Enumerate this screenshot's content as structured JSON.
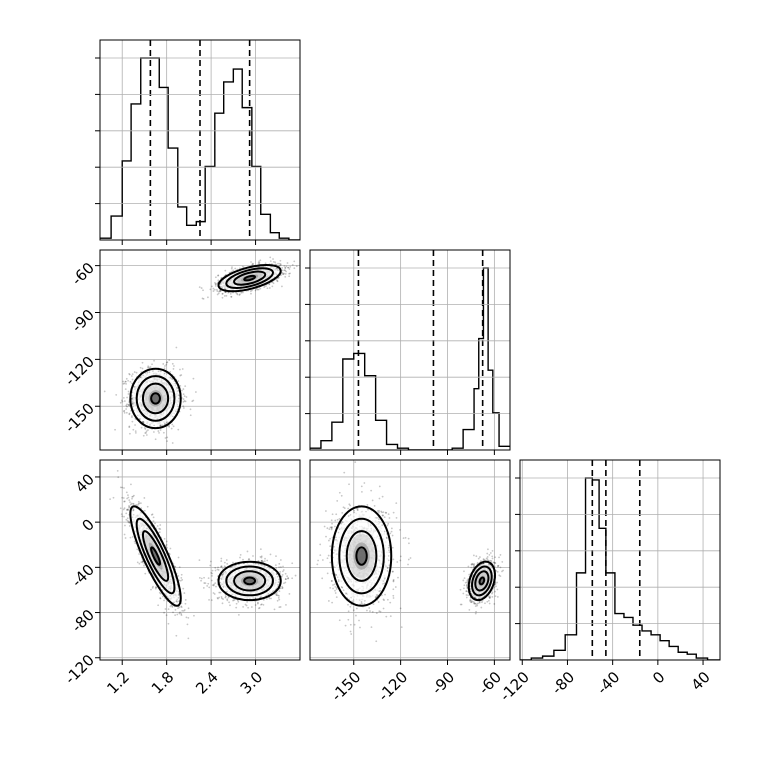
{
  "chart_data": {
    "type": "corner",
    "grid": true,
    "parameters": [
      {
        "range": [
          0.9,
          3.6
        ],
        "ticks": [
          1.2,
          1.8,
          2.4,
          3.0
        ],
        "tick_labels": [
          "1.2",
          "1.8",
          "2.4",
          "3.0"
        ],
        "quantiles": [
          1.58,
          2.25,
          2.92
        ],
        "hist": {
          "bin_edges": [
            0.9,
            1.05,
            1.2,
            1.32,
            1.45,
            1.57,
            1.7,
            1.82,
            1.95,
            2.07,
            2.2,
            2.32,
            2.45,
            2.57,
            2.7,
            2.82,
            2.95,
            3.07,
            3.2,
            3.32,
            3.45,
            3.6
          ],
          "counts": [
            0.01,
            0.13,
            0.43,
            0.74,
            0.99,
            0.99,
            0.83,
            0.5,
            0.18,
            0.08,
            0.1,
            0.4,
            0.69,
            0.86,
            0.93,
            0.72,
            0.4,
            0.14,
            0.04,
            0.01,
            0.0
          ]
        }
      },
      {
        "range": [
          -178,
          -50
        ],
        "ticks": [
          -150,
          -120,
          -90,
          -60
        ],
        "tick_labels": [
          "-150",
          "-120",
          "-90",
          "-60"
        ],
        "quantiles": [
          -147,
          -99,
          -67.5
        ],
        "hist": {
          "bin_edges": [
            -178,
            -171,
            -164,
            -157,
            -150,
            -143,
            -136,
            -129,
            -122,
            -115,
            -108,
            -101,
            -94,
            -87,
            -80,
            -73,
            -70,
            -67,
            -64,
            -61,
            -57,
            -50
          ],
          "counts": [
            0.01,
            0.05,
            0.15,
            0.49,
            0.52,
            0.4,
            0.16,
            0.03,
            0.01,
            0.0,
            0.0,
            0.0,
            0.0,
            0.01,
            0.11,
            0.33,
            0.6,
            0.98,
            0.43,
            0.2,
            0.02
          ]
        }
      },
      {
        "range": [
          -122,
          55
        ],
        "ticks": [
          -120,
          -80,
          -40,
          0,
          40
        ],
        "tick_labels": [
          "-120",
          "-80",
          "-40",
          "0",
          "40"
        ],
        "quantiles": [
          -58,
          -46,
          -16
        ],
        "hist": {
          "bin_edges": [
            -122,
            -112,
            -102,
            -92,
            -82,
            -72,
            -64,
            -58,
            -52,
            -46,
            -38,
            -30,
            -22,
            -14,
            -6,
            2,
            10,
            18,
            26,
            34,
            44,
            55
          ],
          "counts": [
            0.0,
            0.01,
            0.02,
            0.05,
            0.13,
            0.45,
            0.94,
            0.93,
            0.68,
            0.45,
            0.24,
            0.22,
            0.18,
            0.15,
            0.13,
            0.1,
            0.07,
            0.04,
            0.03,
            0.01,
            0.0
          ]
        }
      }
    ],
    "modes": [
      {
        "center": [
          1.65,
          -145,
          -30
        ],
        "sd": [
          0.17,
          9.5,
          22
        ],
        "corr": [
          0.0,
          -0.85,
          0.0
        ]
      },
      {
        "center": [
          2.92,
          -68,
          -52
        ],
        "sd": [
          0.21,
          4.2,
          8.5
        ],
        "corr": [
          0.55,
          0.0,
          0.3
        ]
      }
    ]
  }
}
